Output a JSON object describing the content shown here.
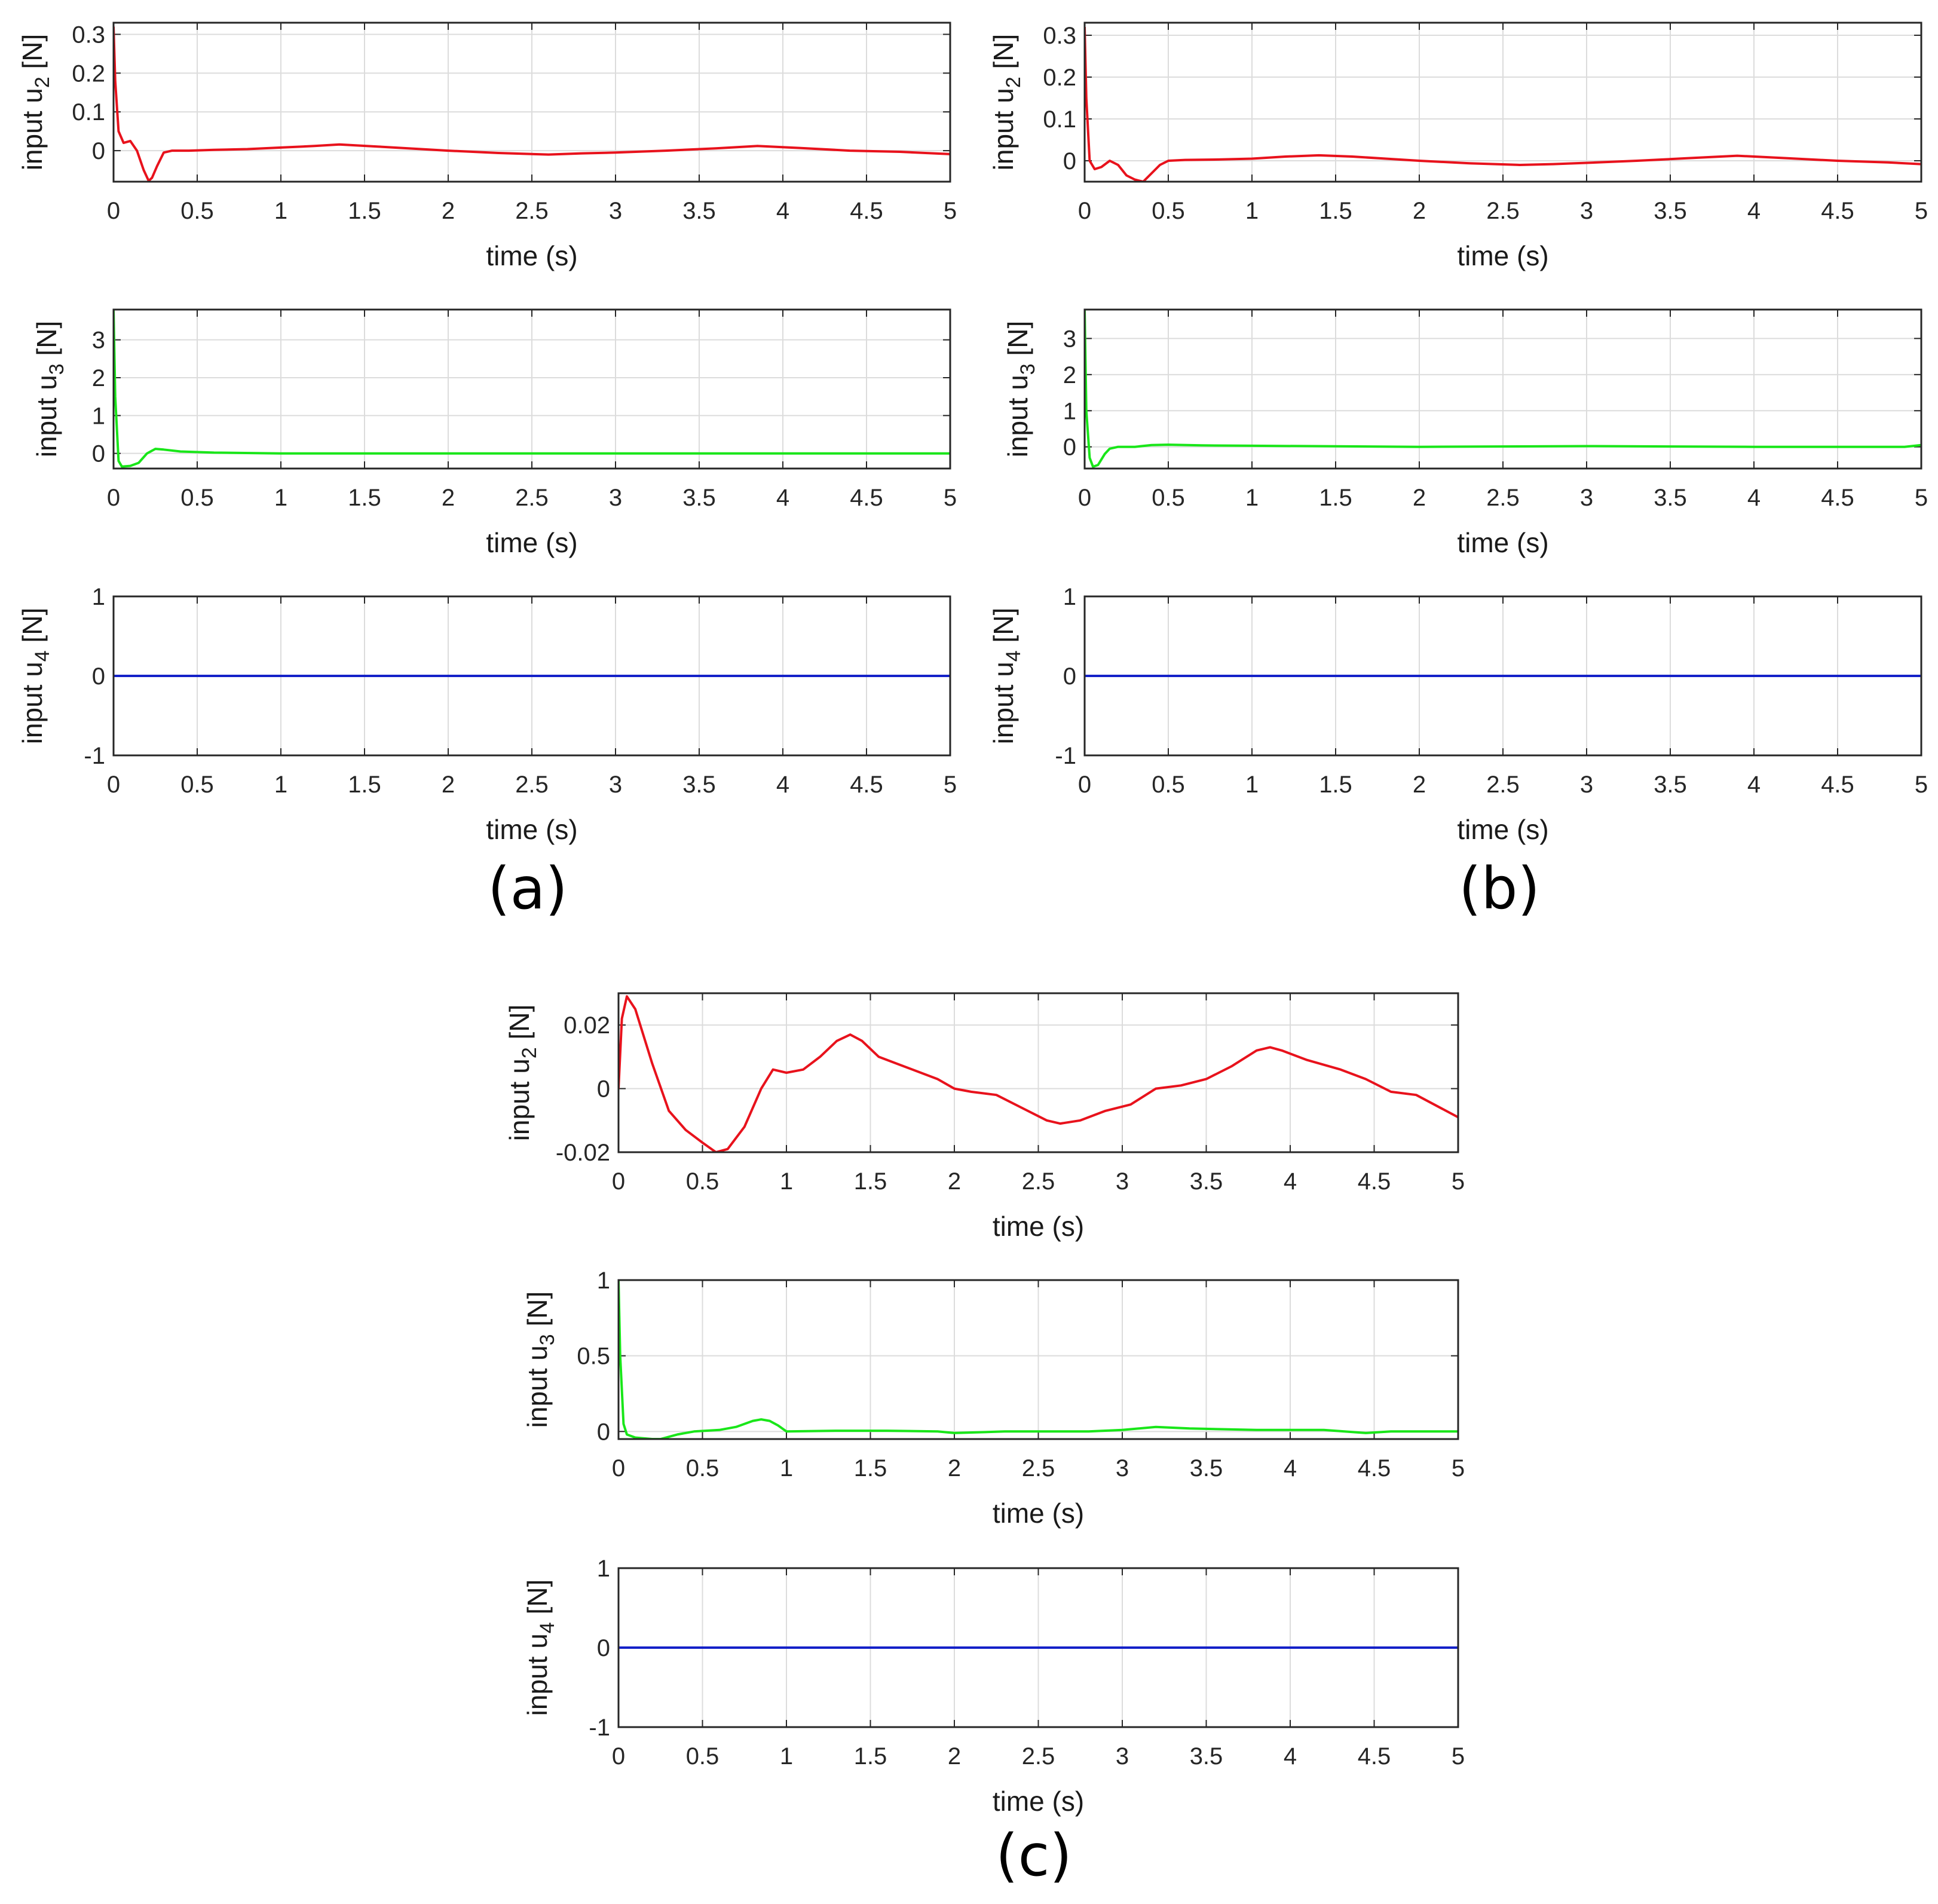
{
  "figure": {
    "panel_labels": [
      "(a)",
      "(b)",
      "(c)"
    ]
  },
  "chart_data": [
    {
      "type": "line",
      "panel": "(a)",
      "ylabel": "input u_2 [N]",
      "xlabel": "time (s)",
      "xlim": [
        0,
        5
      ],
      "ylim": [
        -0.08,
        0.33
      ],
      "xticks": [
        "0",
        "0.5",
        "1",
        "1.5",
        "2",
        "2.5",
        "3",
        "3.5",
        "4",
        "4.5",
        "5"
      ],
      "yticks": [
        {
          "v": 0,
          "label": "0"
        },
        {
          "v": 0.1,
          "label": "0.1"
        },
        {
          "v": 0.2,
          "label": "0.2"
        },
        {
          "v": 0.3,
          "label": "0.3"
        }
      ],
      "grid": true,
      "color": "#e8121c",
      "series": [
        {
          "name": "u2",
          "x": [
            0,
            0.01,
            0.03,
            0.06,
            0.1,
            0.14,
            0.18,
            0.21,
            0.23,
            0.26,
            0.3,
            0.35,
            0.45,
            0.6,
            0.8,
            1.0,
            1.2,
            1.35,
            1.6,
            1.8,
            2.0,
            2.3,
            2.6,
            2.8,
            3.0,
            3.3,
            3.6,
            3.85,
            4.1,
            4.4,
            4.7,
            5.0
          ],
          "y": [
            0.32,
            0.18,
            0.05,
            0.02,
            0.025,
            0.0,
            -0.05,
            -0.078,
            -0.07,
            -0.04,
            -0.005,
            0.0,
            0.0,
            0.002,
            0.004,
            0.008,
            0.012,
            0.016,
            0.01,
            0.005,
            0.0,
            -0.006,
            -0.01,
            -0.007,
            -0.005,
            0.0,
            0.006,
            0.012,
            0.007,
            0.0,
            -0.003,
            -0.009
          ]
        }
      ]
    },
    {
      "type": "line",
      "panel": "(a)",
      "ylabel": "input u_3 [N]",
      "xlabel": "time (s)",
      "xlim": [
        0,
        5
      ],
      "ylim": [
        -0.4,
        3.8
      ],
      "xticks": [
        "0",
        "0.5",
        "1",
        "1.5",
        "2",
        "2.5",
        "3",
        "3.5",
        "4",
        "4.5",
        "5"
      ],
      "yticks": [
        {
          "v": 0,
          "label": "0"
        },
        {
          "v": 1,
          "label": "1"
        },
        {
          "v": 2,
          "label": "2"
        },
        {
          "v": 3,
          "label": "3"
        }
      ],
      "grid": true,
      "color": "#19e619",
      "series": [
        {
          "name": "u3",
          "x": [
            0,
            0.01,
            0.03,
            0.05,
            0.1,
            0.15,
            0.2,
            0.25,
            0.3,
            0.4,
            0.6,
            1.0,
            2.0,
            3.0,
            4.0,
            5.0
          ],
          "y": [
            3.8,
            1.5,
            -0.2,
            -0.35,
            -0.33,
            -0.25,
            0.0,
            0.12,
            0.1,
            0.05,
            0.02,
            0.0,
            0.0,
            0.0,
            0.0,
            0.0
          ]
        }
      ]
    },
    {
      "type": "line",
      "panel": "(a)",
      "ylabel": "input u_4 [N]",
      "xlabel": "time (s)",
      "xlim": [
        0,
        5
      ],
      "ylim": [
        -1,
        1
      ],
      "xticks": [
        "0",
        "0.5",
        "1",
        "1.5",
        "2",
        "2.5",
        "3",
        "3.5",
        "4",
        "4.5",
        "5"
      ],
      "yticks": [
        {
          "v": -1,
          "label": "-1"
        },
        {
          "v": 0,
          "label": "0"
        },
        {
          "v": 1,
          "label": "1"
        }
      ],
      "grid": true,
      "color": "#1421c8",
      "series": [
        {
          "name": "u4",
          "x": [
            0,
            5
          ],
          "y": [
            0,
            0
          ]
        }
      ]
    },
    {
      "type": "line",
      "panel": "(b)",
      "ylabel": "input u_2 [N]",
      "xlabel": "time (s)",
      "xlim": [
        0,
        5
      ],
      "ylim": [
        -0.05,
        0.33
      ],
      "xticks": [
        "0",
        "0.5",
        "1",
        "1.5",
        "2",
        "2.5",
        "3",
        "3.5",
        "4",
        "4.5",
        "5"
      ],
      "yticks": [
        {
          "v": 0,
          "label": "0"
        },
        {
          "v": 0.1,
          "label": "0.1"
        },
        {
          "v": 0.2,
          "label": "0.2"
        },
        {
          "v": 0.3,
          "label": "0.3"
        }
      ],
      "grid": true,
      "color": "#e8121c",
      "series": [
        {
          "name": "u2",
          "x": [
            0,
            0.01,
            0.03,
            0.06,
            0.1,
            0.15,
            0.2,
            0.25,
            0.3,
            0.35,
            0.4,
            0.45,
            0.5,
            0.6,
            0.8,
            1.0,
            1.2,
            1.4,
            1.6,
            1.8,
            2.0,
            2.3,
            2.6,
            2.8,
            3.0,
            3.3,
            3.6,
            3.9,
            4.2,
            4.5,
            4.8,
            5.0
          ],
          "y": [
            0.32,
            0.15,
            0.0,
            -0.02,
            -0.015,
            0.0,
            -0.01,
            -0.035,
            -0.045,
            -0.05,
            -0.03,
            -0.01,
            0.0,
            0.002,
            0.003,
            0.005,
            0.01,
            0.013,
            0.01,
            0.005,
            0.0,
            -0.006,
            -0.01,
            -0.008,
            -0.005,
            0.0,
            0.006,
            0.012,
            0.006,
            0.0,
            -0.004,
            -0.008
          ]
        }
      ]
    },
    {
      "type": "line",
      "panel": "(b)",
      "ylabel": "input u_3 [N]",
      "xlabel": "time (s)",
      "xlim": [
        0,
        5
      ],
      "ylim": [
        -0.6,
        3.8
      ],
      "xticks": [
        "0",
        "0.5",
        "1",
        "1.5",
        "2",
        "2.5",
        "3",
        "3.5",
        "4",
        "4.5",
        "5"
      ],
      "yticks": [
        {
          "v": 0,
          "label": "0"
        },
        {
          "v": 1,
          "label": "1"
        },
        {
          "v": 2,
          "label": "2"
        },
        {
          "v": 3,
          "label": "3"
        }
      ],
      "grid": true,
      "color": "#19e619",
      "series": [
        {
          "name": "u3",
          "x": [
            0,
            0.01,
            0.03,
            0.05,
            0.08,
            0.12,
            0.15,
            0.2,
            0.3,
            0.4,
            0.5,
            0.7,
            1.0,
            2.0,
            3.0,
            4.0,
            4.9,
            5.0
          ],
          "y": [
            3.8,
            1.0,
            -0.3,
            -0.55,
            -0.5,
            -0.2,
            -0.05,
            0.0,
            0.0,
            0.05,
            0.06,
            0.04,
            0.03,
            0.0,
            0.02,
            0.0,
            0.0,
            0.05
          ]
        }
      ]
    },
    {
      "type": "line",
      "panel": "(b)",
      "ylabel": "input u_4 [N]",
      "xlabel": "time (s)",
      "xlim": [
        0,
        5
      ],
      "ylim": [
        -1,
        1
      ],
      "xticks": [
        "0",
        "0.5",
        "1",
        "1.5",
        "2",
        "2.5",
        "3",
        "3.5",
        "4",
        "4.5",
        "5"
      ],
      "yticks": [
        {
          "v": -1,
          "label": "-1"
        },
        {
          "v": 0,
          "label": "0"
        },
        {
          "v": 1,
          "label": "1"
        }
      ],
      "grid": true,
      "color": "#1421c8",
      "series": [
        {
          "name": "u4",
          "x": [
            0,
            5
          ],
          "y": [
            0,
            0
          ]
        }
      ]
    },
    {
      "type": "line",
      "panel": "(c)",
      "ylabel": "input u_2 [N]",
      "xlabel": "time (s)",
      "xlim": [
        0,
        5
      ],
      "ylim": [
        -0.02,
        0.03
      ],
      "xticks": [
        "0",
        "0.5",
        "1",
        "1.5",
        "2",
        "2.5",
        "3",
        "3.5",
        "4",
        "4.5",
        "5"
      ],
      "yticks": [
        {
          "v": -0.02,
          "label": "-0.02"
        },
        {
          "v": 0,
          "label": "0"
        },
        {
          "v": 0.02,
          "label": "0.02"
        }
      ],
      "grid": true,
      "color": "#e8121c",
      "series": [
        {
          "name": "u2",
          "x": [
            0,
            0.02,
            0.05,
            0.1,
            0.2,
            0.3,
            0.4,
            0.5,
            0.58,
            0.65,
            0.75,
            0.85,
            0.92,
            1.0,
            1.1,
            1.2,
            1.3,
            1.38,
            1.45,
            1.55,
            1.7,
            1.9,
            2.0,
            2.1,
            2.25,
            2.4,
            2.55,
            2.63,
            2.75,
            2.9,
            3.05,
            3.2,
            3.35,
            3.5,
            3.65,
            3.8,
            3.88,
            3.95,
            4.1,
            4.3,
            4.45,
            4.6,
            4.75,
            5.0
          ],
          "y": [
            0.0,
            0.022,
            0.029,
            0.025,
            0.008,
            -0.007,
            -0.013,
            -0.017,
            -0.02,
            -0.019,
            -0.012,
            0.0,
            0.006,
            0.005,
            0.006,
            0.01,
            0.015,
            0.017,
            0.015,
            0.01,
            0.007,
            0.003,
            0.0,
            -0.001,
            -0.002,
            -0.006,
            -0.01,
            -0.011,
            -0.01,
            -0.007,
            -0.005,
            0.0,
            0.001,
            0.003,
            0.007,
            0.012,
            0.013,
            0.012,
            0.009,
            0.006,
            0.003,
            -0.001,
            -0.002,
            -0.009
          ]
        }
      ]
    },
    {
      "type": "line",
      "panel": "(c)",
      "ylabel": "input u_3 [N]",
      "xlabel": "time (s)",
      "xlim": [
        0,
        5
      ],
      "ylim": [
        -0.05,
        1.0
      ],
      "xticks": [
        "0",
        "0.5",
        "1",
        "1.5",
        "2",
        "2.5",
        "3",
        "3.5",
        "4",
        "4.5",
        "5"
      ],
      "yticks": [
        {
          "v": 0,
          "label": "0"
        },
        {
          "v": 0.5,
          "label": "0.5"
        },
        {
          "v": 1,
          "label": "1"
        }
      ],
      "grid": true,
      "color": "#19e619",
      "series": [
        {
          "name": "u3",
          "x": [
            0,
            0.01,
            0.03,
            0.05,
            0.1,
            0.2,
            0.25,
            0.35,
            0.45,
            0.6,
            0.7,
            0.8,
            0.85,
            0.9,
            0.95,
            1.0,
            1.3,
            1.6,
            1.9,
            2.0,
            2.3,
            2.8,
            3.0,
            3.2,
            3.4,
            3.8,
            4.2,
            4.45,
            4.6,
            5.0
          ],
          "y": [
            1.0,
            0.5,
            0.05,
            -0.02,
            -0.04,
            -0.05,
            -0.05,
            -0.02,
            0.0,
            0.01,
            0.03,
            0.07,
            0.08,
            0.07,
            0.04,
            0.0,
            0.005,
            0.005,
            0.0,
            -0.01,
            0.0,
            0.0,
            0.01,
            0.03,
            0.02,
            0.01,
            0.01,
            -0.01,
            0.0,
            0.0
          ]
        }
      ]
    },
    {
      "type": "line",
      "panel": "(c)",
      "ylabel": "input u_4 [N]",
      "xlabel": "time (s)",
      "xlim": [
        0,
        5
      ],
      "ylim": [
        -1,
        1
      ],
      "xticks": [
        "0",
        "0.5",
        "1",
        "1.5",
        "2",
        "2.5",
        "3",
        "3.5",
        "4",
        "4.5",
        "5"
      ],
      "yticks": [
        {
          "v": -1,
          "label": "-1"
        },
        {
          "v": 0,
          "label": "0"
        },
        {
          "v": 1,
          "label": "1"
        }
      ],
      "grid": true,
      "color": "#1421c8",
      "series": [
        {
          "name": "u4",
          "x": [
            0,
            5
          ],
          "y": [
            0,
            0
          ]
        }
      ]
    }
  ]
}
